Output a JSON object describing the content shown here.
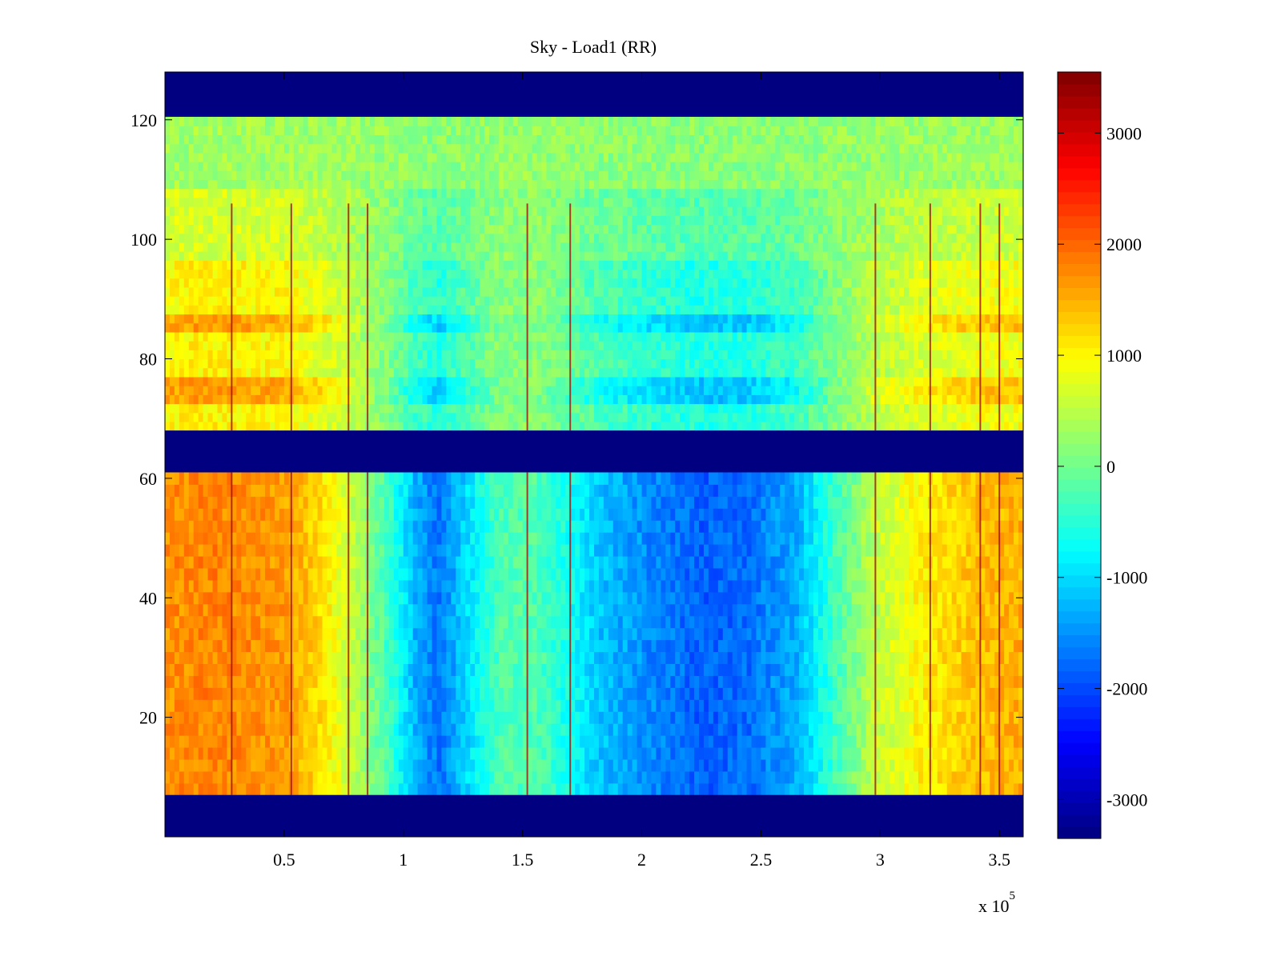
{
  "chart_data": {
    "type": "heatmap",
    "title": "Sky - Load1 (RR)",
    "xlabel": "",
    "ylabel": "",
    "x_exponent_label": "x 10",
    "x_exponent_power": "5",
    "xlim": [
      0,
      360000
    ],
    "ylim": [
      0,
      128
    ],
    "xticks": [
      50000,
      100000,
      150000,
      200000,
      250000,
      300000,
      350000
    ],
    "xtick_labels": [
      "0.5",
      "1",
      "1.5",
      "2",
      "2.5",
      "3",
      "3.5"
    ],
    "yticks": [
      20,
      40,
      60,
      80,
      100,
      120
    ],
    "ytick_labels": [
      "20",
      "40",
      "60",
      "80",
      "100",
      "120"
    ],
    "colormap": "jet",
    "clim": [
      -3350,
      3550
    ],
    "colorbar_ticks": [
      3000,
      2000,
      1000,
      0,
      -1000,
      -2000,
      -3000
    ],
    "colorbar_tick_labels": [
      "3000",
      "2000",
      "1000",
      "0",
      "-1000",
      "-2000",
      "-3000"
    ],
    "masked_rows": [
      [
        0,
        7
      ],
      [
        61,
        68
      ],
      [
        121,
        128
      ]
    ],
    "masked_value": -3350,
    "lower_band_rows": [
      7,
      61
    ],
    "upper_band_rows": [
      68,
      121
    ],
    "x_profile": [
      {
        "x": 0,
        "v": 1700
      },
      {
        "x": 20000,
        "v": 1800
      },
      {
        "x": 50000,
        "v": 1650
      },
      {
        "x": 65000,
        "v": 1200
      },
      {
        "x": 80000,
        "v": 450
      },
      {
        "x": 95000,
        "v": -400
      },
      {
        "x": 105000,
        "v": -1300
      },
      {
        "x": 115000,
        "v": -1700
      },
      {
        "x": 125000,
        "v": -1100
      },
      {
        "x": 140000,
        "v": -250
      },
      {
        "x": 155000,
        "v": -200
      },
      {
        "x": 170000,
        "v": -650
      },
      {
        "x": 180000,
        "v": -1100
      },
      {
        "x": 200000,
        "v": -1500
      },
      {
        "x": 225000,
        "v": -1850
      },
      {
        "x": 245000,
        "v": -1750
      },
      {
        "x": 265000,
        "v": -1300
      },
      {
        "x": 280000,
        "v": -400
      },
      {
        "x": 295000,
        "v": 400
      },
      {
        "x": 315000,
        "v": 1000
      },
      {
        "x": 340000,
        "v": 1400
      },
      {
        "x": 360000,
        "v": 1500
      }
    ],
    "spikes_x": [
      28000,
      53000,
      77000,
      85000,
      152000,
      170000,
      298000,
      321000,
      342000,
      350000
    ]
  }
}
